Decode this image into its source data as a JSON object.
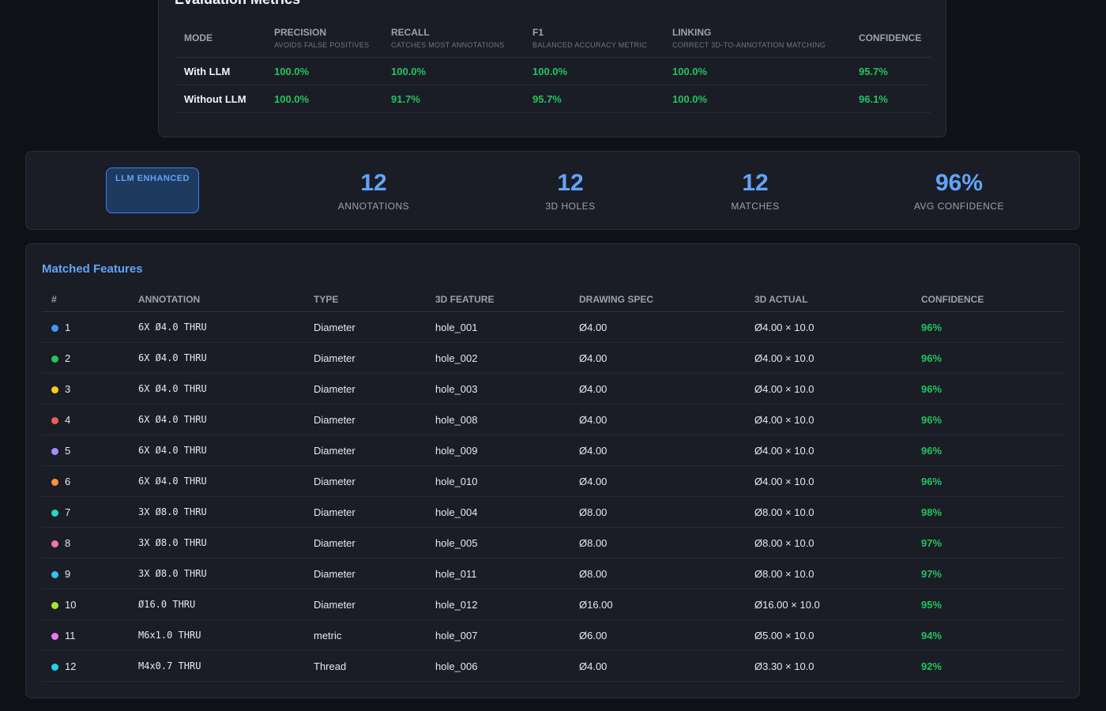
{
  "evaluation": {
    "title": "Evaluation Metrics",
    "columns": [
      {
        "label": "Mode",
        "sub": ""
      },
      {
        "label": "Precision",
        "sub": "Avoids false positives"
      },
      {
        "label": "Recall",
        "sub": "Catches most annotations"
      },
      {
        "label": "F1",
        "sub": "Balanced accuracy metric"
      },
      {
        "label": "Linking",
        "sub": "Correct 3D-to-annotation matching"
      },
      {
        "label": "Confidence",
        "sub": ""
      }
    ],
    "rows": [
      {
        "mode": "With LLM",
        "precision": "100.0%",
        "recall": "100.0%",
        "f1": "100.0%",
        "linking": "100.0%",
        "confidence": "95.7%"
      },
      {
        "mode": "Without LLM",
        "precision": "100.0%",
        "recall": "91.7%",
        "f1": "95.7%",
        "linking": "100.0%",
        "confidence": "96.1%"
      }
    ]
  },
  "summary": {
    "badge": "LLM ENHANCED",
    "stats": [
      {
        "value": "12",
        "label": "Annotations"
      },
      {
        "value": "12",
        "label": "3D Holes"
      },
      {
        "value": "12",
        "label": "Matches"
      },
      {
        "value": "96%",
        "label": "Avg Confidence"
      }
    ]
  },
  "features": {
    "title": "Matched Features",
    "columns": [
      "#",
      "Annotation",
      "Type",
      "3D Feature",
      "Drawing Spec",
      "3D Actual",
      "Confidence"
    ],
    "rows": [
      {
        "num": "1",
        "color": "#3b9cf6",
        "annotation": "6X Ø4.0 THRU",
        "type": "Diameter",
        "feature": "hole_001",
        "spec": "Ø4.00",
        "actual": "Ø4.00 × 10.0",
        "confidence": "96%"
      },
      {
        "num": "2",
        "color": "#22c55e",
        "annotation": "6X Ø4.0 THRU",
        "type": "Diameter",
        "feature": "hole_002",
        "spec": "Ø4.00",
        "actual": "Ø4.00 × 10.0",
        "confidence": "96%"
      },
      {
        "num": "3",
        "color": "#facc15",
        "annotation": "6X Ø4.0 THRU",
        "type": "Diameter",
        "feature": "hole_003",
        "spec": "Ø4.00",
        "actual": "Ø4.00 × 10.0",
        "confidence": "96%"
      },
      {
        "num": "4",
        "color": "#ef5b5b",
        "annotation": "6X Ø4.0 THRU",
        "type": "Diameter",
        "feature": "hole_008",
        "spec": "Ø4.00",
        "actual": "Ø4.00 × 10.0",
        "confidence": "96%"
      },
      {
        "num": "5",
        "color": "#a78bfa",
        "annotation": "6X Ø4.0 THRU",
        "type": "Diameter",
        "feature": "hole_009",
        "spec": "Ø4.00",
        "actual": "Ø4.00 × 10.0",
        "confidence": "96%"
      },
      {
        "num": "6",
        "color": "#fb923c",
        "annotation": "6X Ø4.0 THRU",
        "type": "Diameter",
        "feature": "hole_010",
        "spec": "Ø4.00",
        "actual": "Ø4.00 × 10.0",
        "confidence": "96%"
      },
      {
        "num": "7",
        "color": "#2dd4bf",
        "annotation": "3X Ø8.0 THRU",
        "type": "Diameter",
        "feature": "hole_004",
        "spec": "Ø8.00",
        "actual": "Ø8.00 × 10.0",
        "confidence": "98%"
      },
      {
        "num": "8",
        "color": "#f472b6",
        "annotation": "3X Ø8.0 THRU",
        "type": "Diameter",
        "feature": "hole_005",
        "spec": "Ø8.00",
        "actual": "Ø8.00 × 10.0",
        "confidence": "97%"
      },
      {
        "num": "9",
        "color": "#38bdf8",
        "annotation": "3X Ø8.0 THRU",
        "type": "Diameter",
        "feature": "hole_011",
        "spec": "Ø8.00",
        "actual": "Ø8.00 × 10.0",
        "confidence": "97%"
      },
      {
        "num": "10",
        "color": "#a3e635",
        "annotation": "Ø16.0 THRU",
        "type": "Diameter",
        "feature": "hole_012",
        "spec": "Ø16.00",
        "actual": "Ø16.00 × 10.0",
        "confidence": "95%"
      },
      {
        "num": "11",
        "color": "#e879f9",
        "annotation": "M6x1.0 THRU",
        "type": "metric",
        "feature": "hole_007",
        "spec": "Ø6.00",
        "actual": "Ø5.00 × 10.0",
        "confidence": "94%"
      },
      {
        "num": "12",
        "color": "#22d3ee",
        "annotation": "M4x0.7 THRU",
        "type": "Thread",
        "feature": "hole_006",
        "spec": "Ø4.00",
        "actual": "Ø3.30 × 10.0",
        "confidence": "92%"
      }
    ]
  }
}
